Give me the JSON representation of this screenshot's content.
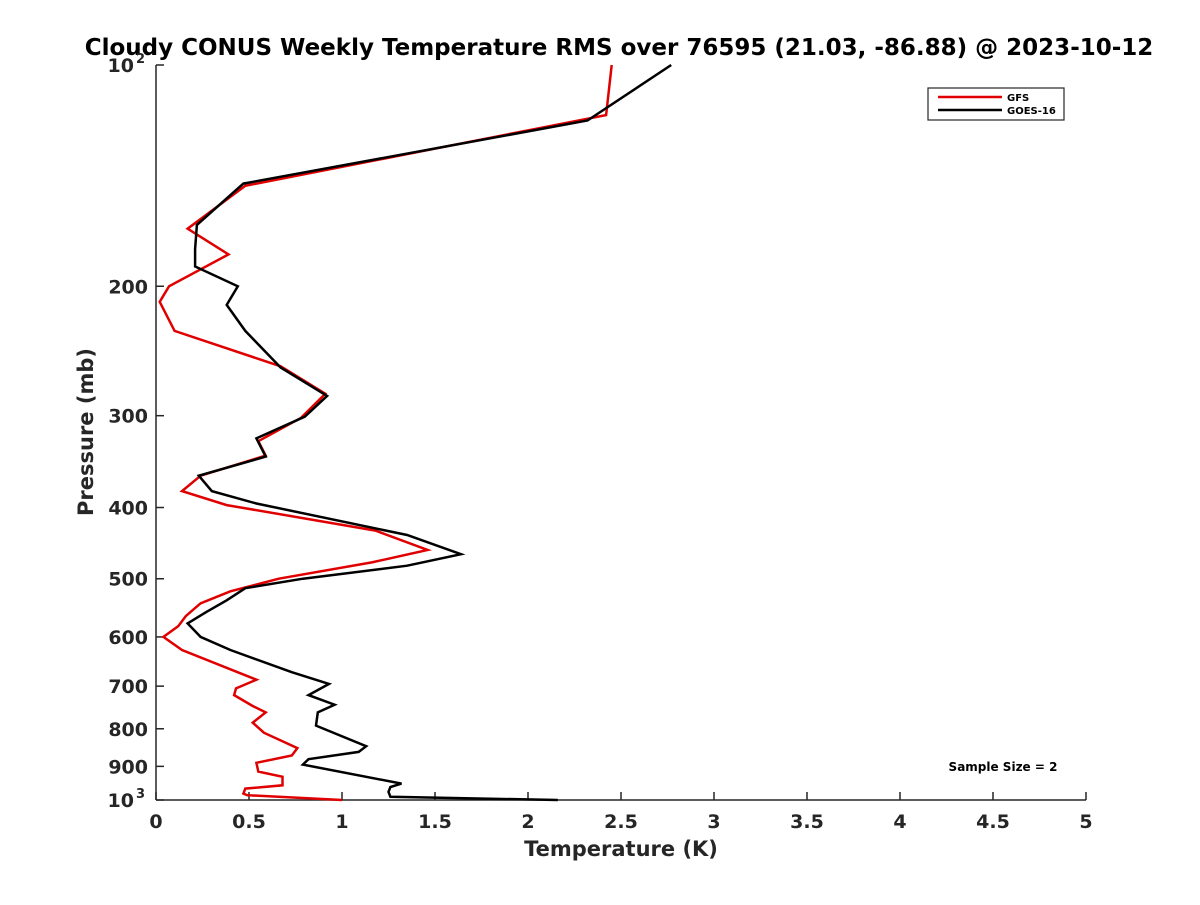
{
  "chart_data": {
    "type": "line",
    "title": "Cloudy CONUS Weekly Temperature RMS over 76595 (21.03, -86.88) @ 2023-10-12",
    "xlabel": "Temperature (K)",
    "ylabel": "Pressure (mb)",
    "xlim": [
      0,
      5
    ],
    "ylim": [
      1000,
      100
    ],
    "yscale": "log",
    "y_reversed": true,
    "x_ticks": [
      {
        "value": 0,
        "label": "0"
      },
      {
        "value": 0.5,
        "label": "0.5"
      },
      {
        "value": 1,
        "label": "1"
      },
      {
        "value": 1.5,
        "label": "1.5"
      },
      {
        "value": 2,
        "label": "2"
      },
      {
        "value": 2.5,
        "label": "2.5"
      },
      {
        "value": 3,
        "label": "3"
      },
      {
        "value": 3.5,
        "label": "3.5"
      },
      {
        "value": 4,
        "label": "4"
      },
      {
        "value": 4.5,
        "label": "4.5"
      },
      {
        "value": 5,
        "label": "5"
      }
    ],
    "y_ticks": [
      {
        "value": 100,
        "base": "10",
        "exp": "2"
      },
      {
        "value": 200,
        "label": "200"
      },
      {
        "value": 300,
        "label": "300"
      },
      {
        "value": 400,
        "label": "400"
      },
      {
        "value": 500,
        "label": "500"
      },
      {
        "value": 600,
        "label": "600"
      },
      {
        "value": 700,
        "label": "700"
      },
      {
        "value": 800,
        "label": "800"
      },
      {
        "value": 900,
        "label": "900"
      },
      {
        "value": 1000,
        "base": "10",
        "exp": "3"
      }
    ],
    "grid": false,
    "legend": "top-right",
    "series": [
      {
        "name": "GFS",
        "color": "#e00000",
        "points": [
          [
            2.45,
            100
          ],
          [
            2.42,
            117
          ],
          [
            0.48,
            146
          ],
          [
            0.17,
            167
          ],
          [
            0.39,
            181
          ],
          [
            0.07,
            200
          ],
          [
            0.02,
            210
          ],
          [
            0.1,
            230
          ],
          [
            0.67,
            257
          ],
          [
            0.91,
            280
          ],
          [
            0.78,
            302
          ],
          [
            0.55,
            325
          ],
          [
            0.59,
            340
          ],
          [
            0.24,
            362
          ],
          [
            0.14,
            380
          ],
          [
            0.38,
            397
          ],
          [
            1.18,
            430
          ],
          [
            1.46,
            457
          ],
          [
            1.16,
            475
          ],
          [
            0.66,
            500
          ],
          [
            0.4,
            520
          ],
          [
            0.24,
            540
          ],
          [
            0.16,
            562
          ],
          [
            0.12,
            580
          ],
          [
            0.04,
            600
          ],
          [
            0.14,
            625
          ],
          [
            0.54,
            686
          ],
          [
            0.43,
            705
          ],
          [
            0.42,
            720
          ],
          [
            0.52,
            745
          ],
          [
            0.59,
            760
          ],
          [
            0.52,
            785
          ],
          [
            0.58,
            810
          ],
          [
            0.76,
            850
          ],
          [
            0.73,
            870
          ],
          [
            0.54,
            890
          ],
          [
            0.55,
            915
          ],
          [
            0.68,
            930
          ],
          [
            0.68,
            955
          ],
          [
            0.48,
            965
          ],
          [
            0.47,
            980
          ],
          [
            0.49,
            985
          ],
          [
            1.0,
            1000
          ]
        ]
      },
      {
        "name": "GOES-16",
        "color": "#000000",
        "points": [
          [
            2.77,
            100
          ],
          [
            2.32,
            119
          ],
          [
            0.47,
            145
          ],
          [
            0.22,
            165
          ],
          [
            0.21,
            178
          ],
          [
            0.21,
            188
          ],
          [
            0.44,
            200
          ],
          [
            0.38,
            212
          ],
          [
            0.48,
            230
          ],
          [
            0.67,
            258
          ],
          [
            0.92,
            282
          ],
          [
            0.8,
            301
          ],
          [
            0.54,
            322
          ],
          [
            0.59,
            341
          ],
          [
            0.23,
            362
          ],
          [
            0.3,
            380
          ],
          [
            0.54,
            395
          ],
          [
            1.35,
            436
          ],
          [
            1.64,
            463
          ],
          [
            1.35,
            480
          ],
          [
            0.79,
            500
          ],
          [
            0.48,
            515
          ],
          [
            0.38,
            535
          ],
          [
            0.27,
            555
          ],
          [
            0.17,
            575
          ],
          [
            0.24,
            600
          ],
          [
            0.4,
            625
          ],
          [
            0.73,
            670
          ],
          [
            0.93,
            695
          ],
          [
            0.82,
            720
          ],
          [
            0.96,
            742
          ],
          [
            0.87,
            760
          ],
          [
            0.86,
            792
          ],
          [
            1.13,
            845
          ],
          [
            1.09,
            860
          ],
          [
            0.82,
            880
          ],
          [
            0.79,
            895
          ],
          [
            1.32,
            950
          ],
          [
            1.26,
            960
          ],
          [
            1.25,
            975
          ],
          [
            1.26,
            990
          ],
          [
            2.16,
            1000
          ]
        ]
      }
    ],
    "annotations": [
      {
        "text": "Sample Size = 2"
      }
    ]
  }
}
